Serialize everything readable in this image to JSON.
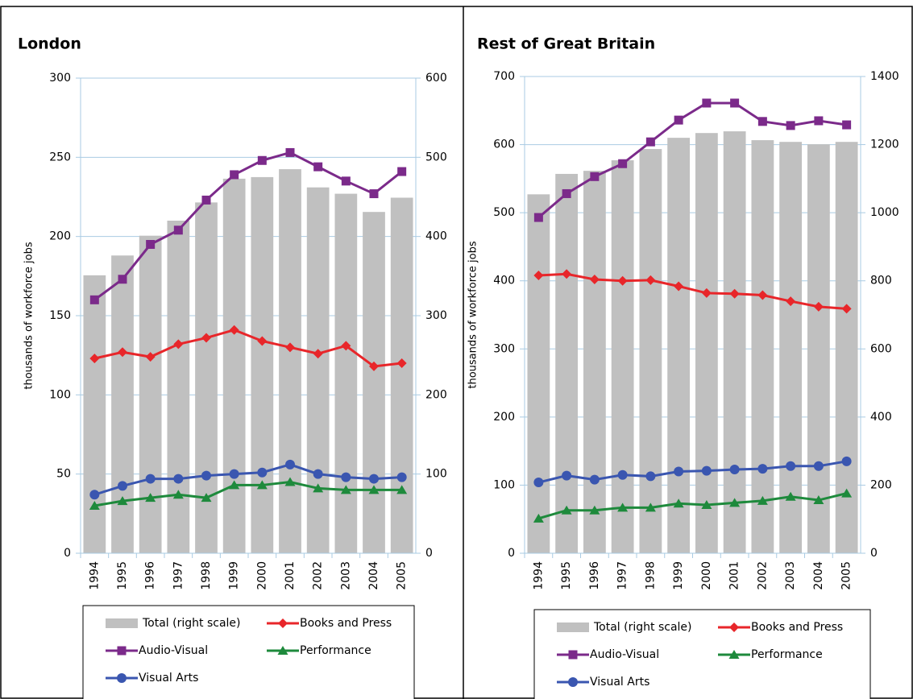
{
  "chart_data": [
    {
      "type": "combo",
      "title": "London",
      "ylabel": "thousands of workforce jobs",
      "categories": [
        "1994",
        "1995",
        "1996",
        "1997",
        "1998",
        "1999",
        "2000",
        "2001",
        "2002",
        "2003",
        "2004",
        "2005"
      ],
      "ylim": [
        0,
        300
      ],
      "yticks": [
        0,
        50,
        100,
        150,
        200,
        250,
        300
      ],
      "y2lim": [
        0,
        600
      ],
      "y2ticks": [
        0,
        100,
        200,
        300,
        400,
        500,
        600
      ],
      "grid": true,
      "series": [
        {
          "name": "Total (right scale)",
          "mark": "bar",
          "axis": "y2",
          "color": "#c0c0c0",
          "values": [
            351,
            376,
            401,
            420,
            443,
            473,
            475,
            485,
            462,
            454,
            431,
            449
          ]
        },
        {
          "name": "Books and Press",
          "mark": "diamond",
          "color": "#e8262a",
          "values": [
            123,
            127,
            124,
            132,
            136,
            141,
            134,
            130,
            126,
            131,
            118,
            120
          ]
        },
        {
          "name": "Audio-Visual",
          "mark": "square",
          "color": "#7b2a8a",
          "values": [
            160,
            173,
            195,
            204,
            223,
            239,
            248,
            253,
            244,
            235,
            227,
            241
          ]
        },
        {
          "name": "Performance",
          "mark": "triangle",
          "color": "#1e8a3c",
          "values": [
            30,
            33,
            35,
            37,
            35,
            43,
            43,
            45,
            41,
            40,
            40,
            40
          ]
        },
        {
          "name": "Visual Arts",
          "mark": "circle",
          "color": "#3a56b0",
          "values": [
            37,
            42.5,
            47,
            47,
            49,
            50,
            51,
            56,
            50,
            48,
            47,
            48
          ]
        }
      ]
    },
    {
      "type": "combo",
      "title": "Rest of Great Britain",
      "ylabel": "thousands of workforce jobs",
      "categories": [
        "1994",
        "1995",
        "1996",
        "1997",
        "1998",
        "1999",
        "2000",
        "2001",
        "2002",
        "2003",
        "2004",
        "2005"
      ],
      "ylim": [
        0,
        700
      ],
      "yticks": [
        0,
        100,
        200,
        300,
        400,
        500,
        600,
        700
      ],
      "y2lim": [
        0,
        1400
      ],
      "y2ticks": [
        0,
        200,
        400,
        600,
        800,
        1000,
        1200,
        1400
      ],
      "grid": true,
      "series": [
        {
          "name": "Total (right scale)",
          "mark": "bar",
          "axis": "y2",
          "color": "#c0c0c0",
          "values": [
            1054,
            1114,
            1123,
            1154,
            1187,
            1220,
            1234,
            1239,
            1213,
            1208,
            1201,
            1208
          ]
        },
        {
          "name": "Books and Press",
          "mark": "diamond",
          "color": "#e8262a",
          "values": [
            408,
            410,
            402,
            400,
            401,
            392,
            382,
            381,
            379,
            370,
            362,
            359
          ]
        },
        {
          "name": "Audio-Visual",
          "mark": "square",
          "color": "#7b2a8a",
          "values": [
            493,
            528,
            553,
            572,
            604,
            636,
            661,
            661,
            634,
            628,
            635,
            629
          ]
        },
        {
          "name": "Performance",
          "mark": "triangle",
          "color": "#1e8a3c",
          "values": [
            51,
            63,
            63,
            67,
            67,
            73,
            71,
            74,
            77,
            83,
            78,
            88
          ]
        },
        {
          "name": "Visual Arts",
          "mark": "circle",
          "color": "#3a56b0",
          "values": [
            104,
            114,
            108,
            115,
            113,
            120,
            121,
            123,
            124,
            128,
            128,
            135
          ]
        }
      ]
    }
  ]
}
